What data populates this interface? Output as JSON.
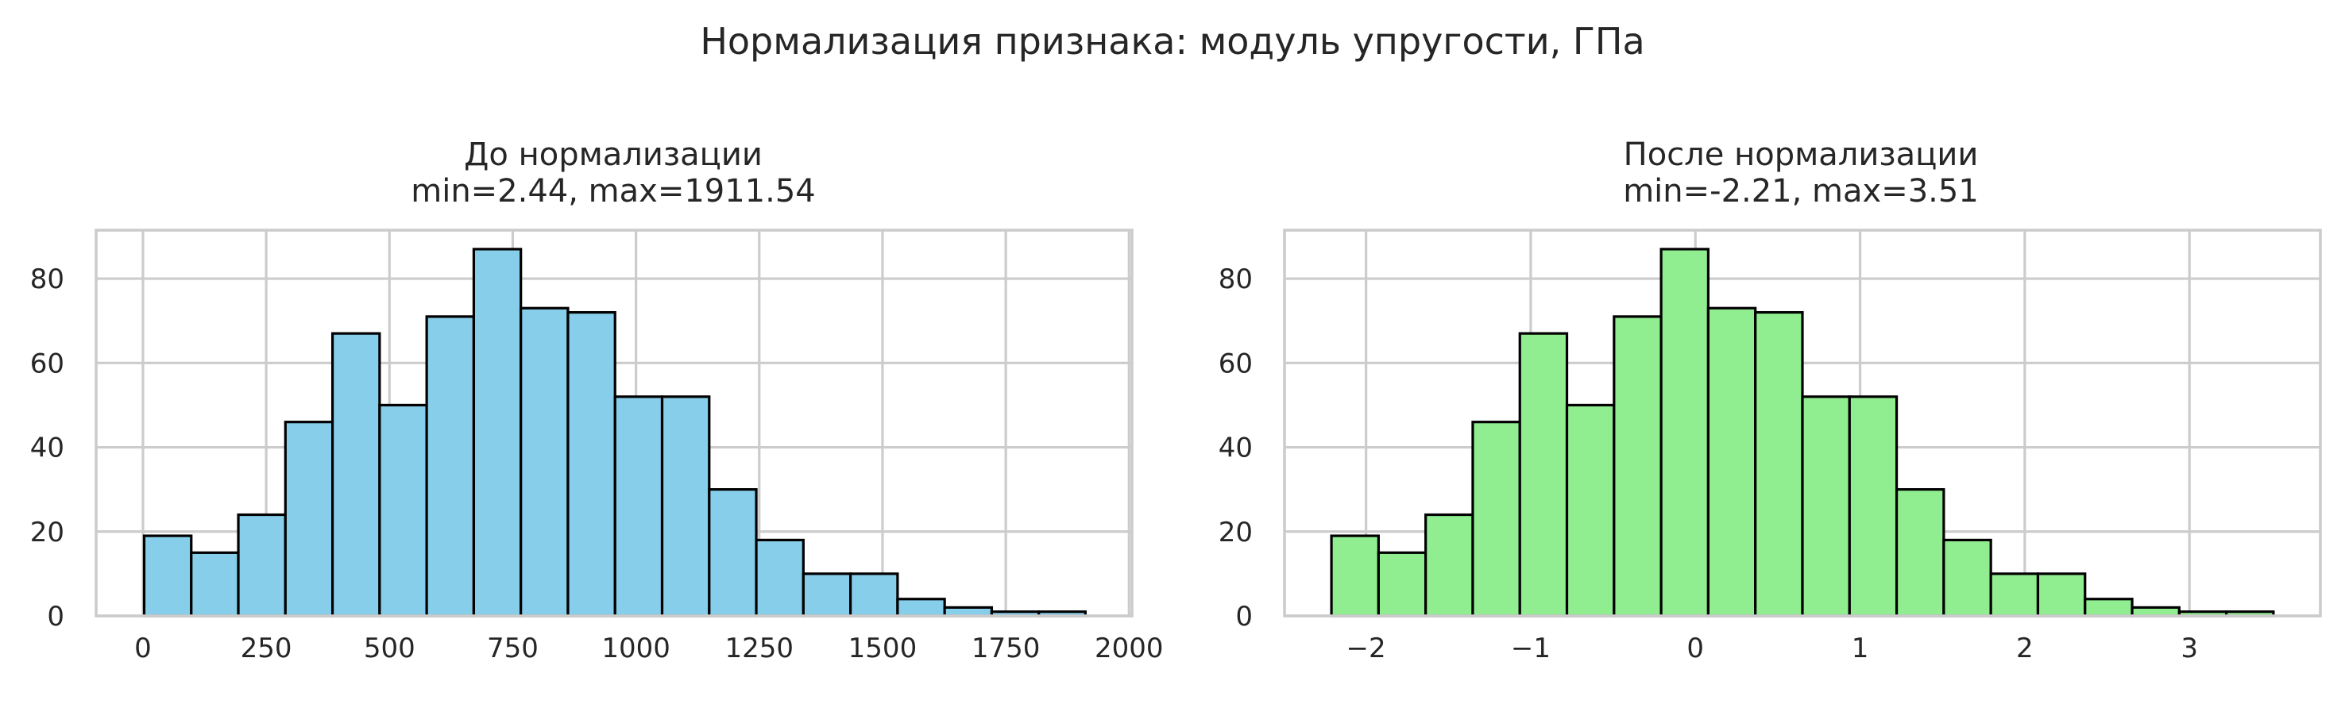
{
  "figure": {
    "suptitle": "Нормализация признака: модуль упругости, ГПа"
  },
  "chart_data": [
    {
      "type": "bar",
      "title": "До нормализации\nmin=2.44, max=1911.54",
      "title_lines": [
        "До нормализации",
        "min=2.44, max=1911.54"
      ],
      "xlabel": "",
      "ylabel": "",
      "grid": true,
      "bar_color": "#87CEEB",
      "edge_color": "#000000",
      "xlim": [
        -95,
        2006
      ],
      "ylim": [
        0,
        91.5
      ],
      "xticks": [
        0,
        250,
        500,
        750,
        1000,
        1250,
        1500,
        1750,
        2000
      ],
      "xtick_labels": [
        "0",
        "250",
        "500",
        "750",
        "1000",
        "1250",
        "1500",
        "1750",
        "2000"
      ],
      "yticks": [
        0,
        20,
        40,
        60,
        80
      ],
      "ytick_labels": [
        "0",
        "20",
        "40",
        "60",
        "80"
      ],
      "bin_edges": [
        2.44,
        97.95,
        193.45,
        288.96,
        384.46,
        479.97,
        575.47,
        670.98,
        766.48,
        861.99,
        957.49,
        1053.0,
        1148.5,
        1244.01,
        1339.51,
        1435.02,
        1530.52,
        1626.03,
        1721.53,
        1817.04,
        1911.54
      ],
      "values": [
        19,
        15,
        24,
        46,
        67,
        50,
        71,
        87,
        73,
        72,
        52,
        52,
        30,
        18,
        10,
        10,
        4,
        2,
        1,
        1
      ]
    },
    {
      "type": "bar",
      "title": "После нормализации\nmin=-2.21, max=3.51",
      "title_lines": [
        "После нормализации",
        "min=-2.21, max=3.51"
      ],
      "xlabel": "",
      "ylabel": "",
      "grid": true,
      "bar_color": "#90EE90",
      "edge_color": "#000000",
      "xlim": [
        -2.495,
        3.795
      ],
      "ylim": [
        0,
        91.5
      ],
      "xticks": [
        -2,
        -1,
        0,
        1,
        2,
        3
      ],
      "xtick_labels": [
        "−2",
        "−1",
        "0",
        "1",
        "2",
        "3"
      ],
      "yticks": [
        0,
        20,
        40,
        60,
        80
      ],
      "ytick_labels": [
        "0",
        "20",
        "40",
        "60",
        "80"
      ],
      "bin_edges": [
        -2.21,
        -1.924,
        -1.638,
        -1.352,
        -1.066,
        -0.78,
        -0.494,
        -0.208,
        0.078,
        0.364,
        0.65,
        0.936,
        1.222,
        1.508,
        1.794,
        2.08,
        2.366,
        2.652,
        2.938,
        3.224,
        3.51
      ],
      "values": [
        19,
        15,
        24,
        46,
        67,
        50,
        71,
        87,
        73,
        72,
        52,
        52,
        30,
        18,
        10,
        10,
        4,
        2,
        1,
        1
      ]
    }
  ]
}
